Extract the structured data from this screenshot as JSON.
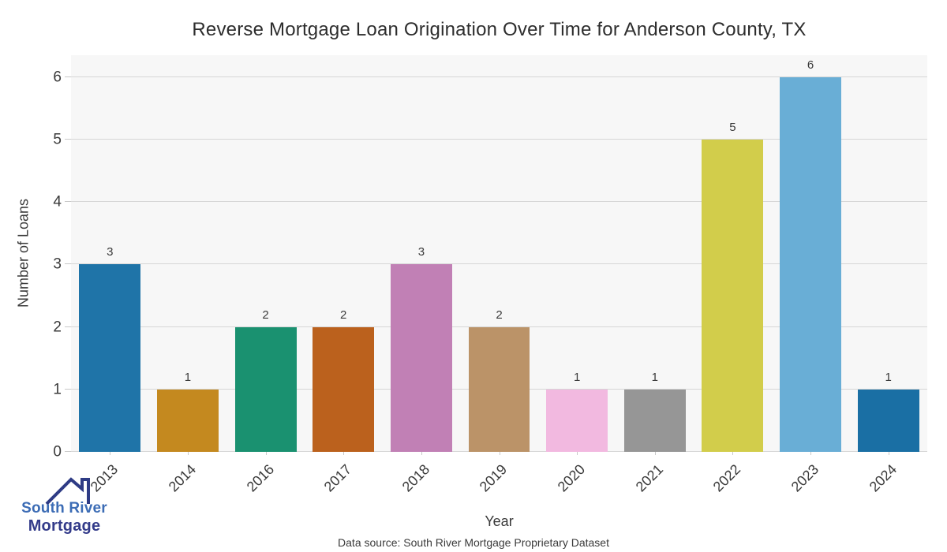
{
  "title": "Reverse Mortgage Loan Origination Over Time for Anderson County, TX",
  "chart_data": {
    "type": "bar",
    "categories": [
      "2013",
      "2014",
      "2016",
      "2017",
      "2018",
      "2019",
      "2020",
      "2021",
      "2022",
      "2023",
      "2024"
    ],
    "values": [
      3,
      1,
      2,
      2,
      3,
      2,
      1,
      1,
      5,
      6,
      1
    ],
    "bar_colors": [
      "#1f74a8",
      "#c4891f",
      "#1a9170",
      "#bb611d",
      "#c180b5",
      "#bb9368",
      "#f2b9e0",
      "#969696",
      "#d2cd4b",
      "#69aed6",
      "#1a6fa4"
    ],
    "title": "Reverse Mortgage Loan Origination Over Time for Anderson County, TX",
    "xlabel": "Year",
    "ylabel": "Number of Loans",
    "ylim": [
      0,
      6.35
    ],
    "yticks": [
      0,
      1,
      2,
      3,
      4,
      5,
      6
    ],
    "grid": "horizontal",
    "legend": "none",
    "plot_bg_color": "#f7f7f7",
    "grid_color": "#d6d6d6",
    "bar_width_fraction": 0.79,
    "value_labels_shown": true
  },
  "footer": {
    "source": "Data source: South River Mortgage Proprietary Dataset"
  },
  "logo": {
    "line1": "South River",
    "line2": "Mortgage",
    "line1_color": "#3c6cb5",
    "line2_color": "#333b8a",
    "roof_color": "#2e3b85"
  }
}
